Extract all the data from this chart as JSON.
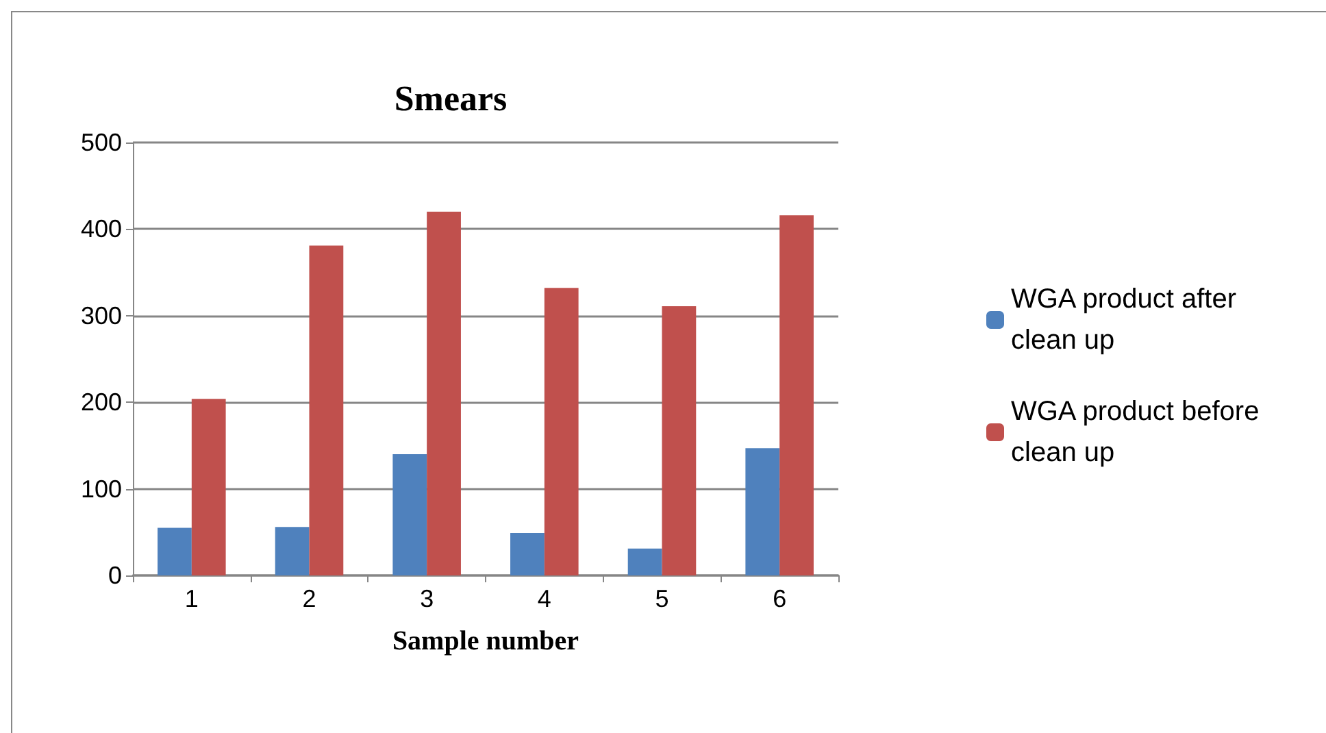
{
  "chart_data": {
    "type": "bar",
    "title": "Smears",
    "xlabel": "Sample number",
    "categories": [
      "1",
      "2",
      "3",
      "4",
      "5",
      "6"
    ],
    "series": [
      {
        "name": "WGA product after clean up",
        "color": "#4f81bd",
        "values": [
          55,
          56,
          140,
          49,
          31,
          147
        ]
      },
      {
        "name": "WGA product before clean up",
        "color": "#c0504d",
        "values": [
          204,
          381,
          420,
          332,
          311,
          416
        ]
      }
    ],
    "ylim": [
      0,
      500
    ],
    "yticks": [
      0,
      100,
      200,
      300,
      400,
      500
    ],
    "grid": "y",
    "legend": "right"
  }
}
